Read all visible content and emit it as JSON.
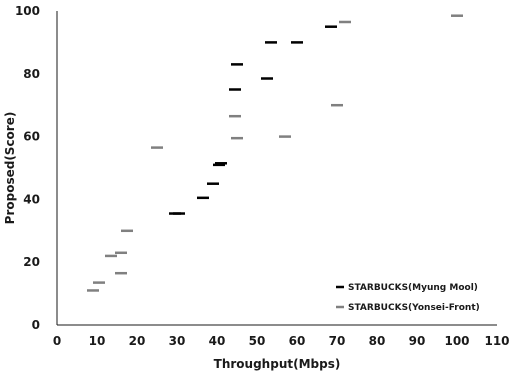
{
  "chart_data": {
    "type": "scatter",
    "title": "",
    "xlabel": "Throughput(Mbps)",
    "ylabel": "Proposed(Score)",
    "xlim": [
      0,
      110
    ],
    "ylim": [
      0,
      100
    ],
    "xticks": [
      0,
      10,
      20,
      30,
      40,
      50,
      60,
      70,
      80,
      90,
      100,
      110
    ],
    "yticks": [
      0,
      20,
      40,
      60,
      80,
      100
    ],
    "grid": false,
    "legend_position": "bottom-right",
    "marker": "dash",
    "series": [
      {
        "name": "STARBUCKS(Myung Mool)",
        "color": "#000000",
        "points": [
          {
            "x": 29.5,
            "y": 35.5
          },
          {
            "x": 30.5,
            "y": 35.5
          },
          {
            "x": 36.5,
            "y": 40.5
          },
          {
            "x": 39,
            "y": 45
          },
          {
            "x": 40.5,
            "y": 51
          },
          {
            "x": 41,
            "y": 51.5
          },
          {
            "x": 44.5,
            "y": 75
          },
          {
            "x": 45,
            "y": 83
          },
          {
            "x": 52.5,
            "y": 78.5
          },
          {
            "x": 53.5,
            "y": 90
          },
          {
            "x": 60,
            "y": 90
          },
          {
            "x": 68.5,
            "y": 95
          }
        ]
      },
      {
        "name": "STARBUCKS(Yonsei-Front)",
        "color": "#808080",
        "points": [
          {
            "x": 9,
            "y": 11
          },
          {
            "x": 10.5,
            "y": 13.5
          },
          {
            "x": 13.5,
            "y": 22
          },
          {
            "x": 16,
            "y": 16.5
          },
          {
            "x": 16,
            "y": 23
          },
          {
            "x": 17.5,
            "y": 30
          },
          {
            "x": 25,
            "y": 56.5
          },
          {
            "x": 44.5,
            "y": 66.5
          },
          {
            "x": 45,
            "y": 59.5
          },
          {
            "x": 57,
            "y": 60
          },
          {
            "x": 70,
            "y": 70
          },
          {
            "x": 72,
            "y": 96.5
          },
          {
            "x": 100,
            "y": 98.5
          }
        ]
      }
    ]
  }
}
